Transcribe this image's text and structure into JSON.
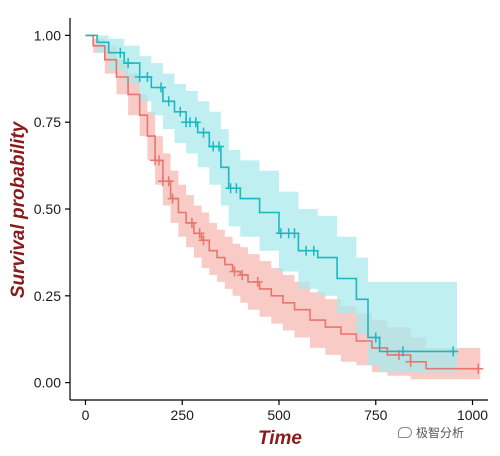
{
  "chart_data": {
    "type": "line",
    "subtype": "kaplan-meier step survival curves with confidence bands and censor marks",
    "title": "",
    "xlabel": "Time",
    "ylabel": "Survival probability",
    "xlim": [
      -40,
      1040
    ],
    "ylim": [
      -0.05,
      1.05
    ],
    "xticks": [
      0,
      250,
      500,
      750,
      1000
    ],
    "yticks": [
      0.0,
      0.25,
      0.5,
      0.75,
      1.0
    ],
    "ytick_labels": [
      "0.00",
      "0.25",
      "0.50",
      "0.75",
      "1.00"
    ],
    "grid": false,
    "legend": "none",
    "series": [
      {
        "color": "#e8756f",
        "band_color": "#f6b9b3",
        "x": [
          0,
          20,
          50,
          80,
          110,
          140,
          160,
          180,
          200,
          220,
          240,
          260,
          280,
          300,
          320,
          340,
          360,
          380,
          400,
          420,
          450,
          480,
          510,
          540,
          580,
          620,
          660,
          700,
          740,
          780,
          840,
          880,
          1020
        ],
        "y": [
          1.0,
          0.97,
          0.93,
          0.88,
          0.83,
          0.77,
          0.71,
          0.64,
          0.58,
          0.53,
          0.49,
          0.46,
          0.43,
          0.41,
          0.38,
          0.36,
          0.34,
          0.32,
          0.31,
          0.29,
          0.27,
          0.25,
          0.23,
          0.21,
          0.18,
          0.16,
          0.14,
          0.12,
          0.1,
          0.08,
          0.06,
          0.04,
          0.04
        ],
        "lower": [
          1.0,
          0.95,
          0.89,
          0.83,
          0.77,
          0.71,
          0.64,
          0.57,
          0.51,
          0.46,
          0.42,
          0.39,
          0.36,
          0.33,
          0.31,
          0.29,
          0.27,
          0.25,
          0.23,
          0.21,
          0.19,
          0.17,
          0.15,
          0.13,
          0.1,
          0.08,
          0.06,
          0.05,
          0.03,
          0.02,
          0.01,
          0.01,
          0.01
        ],
        "upper": [
          1.0,
          0.99,
          0.97,
          0.93,
          0.89,
          0.83,
          0.78,
          0.71,
          0.66,
          0.61,
          0.57,
          0.54,
          0.51,
          0.49,
          0.46,
          0.44,
          0.42,
          0.4,
          0.39,
          0.37,
          0.35,
          0.33,
          0.31,
          0.29,
          0.26,
          0.24,
          0.22,
          0.2,
          0.18,
          0.16,
          0.13,
          0.1,
          0.1
        ],
        "censor_x": [
          180,
          190,
          200,
          215,
          225,
          275,
          295,
          305,
          385,
          405,
          445,
          810,
          840,
          1015
        ]
      },
      {
        "color": "#1eb6bf",
        "band_color": "#a9eaec",
        "x": [
          0,
          30,
          60,
          100,
          140,
          170,
          200,
          230,
          260,
          290,
          320,
          350,
          370,
          400,
          450,
          500,
          550,
          600,
          650,
          700,
          730,
          760,
          960
        ],
        "y": [
          1.0,
          0.98,
          0.95,
          0.92,
          0.88,
          0.85,
          0.81,
          0.78,
          0.75,
          0.72,
          0.68,
          0.62,
          0.56,
          0.53,
          0.49,
          0.43,
          0.38,
          0.36,
          0.3,
          0.24,
          0.13,
          0.09,
          0.09
        ],
        "lower": [
          1.0,
          0.95,
          0.9,
          0.86,
          0.81,
          0.77,
          0.73,
          0.69,
          0.66,
          0.62,
          0.57,
          0.51,
          0.45,
          0.42,
          0.38,
          0.32,
          0.27,
          0.25,
          0.2,
          0.14,
          0.05,
          0.03,
          0.03
        ],
        "upper": [
          1.0,
          1.0,
          0.99,
          0.97,
          0.94,
          0.92,
          0.89,
          0.86,
          0.84,
          0.81,
          0.78,
          0.73,
          0.67,
          0.64,
          0.61,
          0.55,
          0.5,
          0.48,
          0.42,
          0.36,
          0.29,
          0.29,
          0.29
        ],
        "censor_x": [
          90,
          110,
          140,
          160,
          195,
          215,
          245,
          260,
          270,
          285,
          305,
          330,
          345,
          375,
          390,
          505,
          525,
          540,
          570,
          590,
          750,
          820,
          950
        ]
      }
    ]
  },
  "watermark": {
    "icon": "speech-bubble-icon",
    "text": "极智分析"
  }
}
